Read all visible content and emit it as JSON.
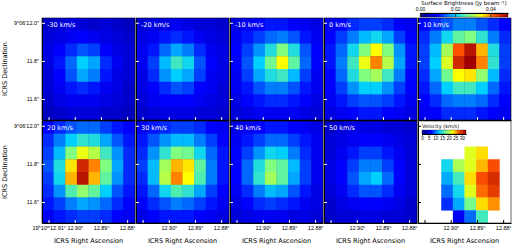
{
  "chart_data": {
    "type": "heatmap",
    "xlabel": "ICRS Right Ascension",
    "ylabel": "ICRS Declination",
    "xlim": [
      12.9125,
      12.877
    ],
    "xticks": [
      {
        "value": 12.91,
        "label": "19ʰ10ᵐ12.91ˢ"
      },
      {
        "value": 12.9,
        "label": "12.90ˢ"
      },
      {
        "value": 12.89,
        "label": "12.89ˢ"
      },
      {
        "value": 12.88,
        "label": "12.88ˢ"
      }
    ],
    "ylim": [
      11.49,
      12.025
    ],
    "yticks": [
      {
        "value": 12.0,
        "label": "9°06′12.0″"
      },
      {
        "value": 11.8,
        "label": "11.8″"
      },
      {
        "value": 11.6,
        "label": "11.6″"
      }
    ],
    "colorbar": {
      "label": "Surface Brightness (Jy beam⁻¹)",
      "range": [
        0,
        0.05
      ],
      "ticks": [
        {
          "value": 0,
          "label": "0.00"
        },
        {
          "value": 0.02,
          "label": "0.02"
        },
        {
          "value": 0.04,
          "label": "0.04"
        }
      ]
    },
    "panels": [
      {
        "label": "-30 km/s",
        "cells": [
          [
            0.006,
            0.007,
            0.008,
            0.007,
            0.006,
            0.007,
            0.006,
            0.005
          ],
          [
            0.007,
            0.008,
            0.009,
            0.01,
            0.009,
            0.008,
            0.007,
            0.006
          ],
          [
            0.008,
            0.01,
            0.012,
            0.014,
            0.013,
            0.01,
            0.008,
            0.007
          ],
          [
            0.008,
            0.011,
            0.015,
            0.02,
            0.018,
            0.012,
            0.009,
            0.007
          ],
          [
            0.007,
            0.01,
            0.014,
            0.018,
            0.016,
            0.011,
            0.008,
            0.007
          ],
          [
            0.007,
            0.009,
            0.011,
            0.012,
            0.011,
            0.009,
            0.008,
            0.006
          ],
          [
            0.006,
            0.008,
            0.009,
            0.009,
            0.009,
            0.008,
            0.007,
            0.006
          ],
          [
            0.005,
            0.006,
            0.007,
            0.007,
            0.007,
            0.006,
            0.006,
            0.005
          ]
        ]
      },
      {
        "label": "-20 km/s",
        "cells": [
          [
            0.007,
            0.008,
            0.008,
            0.009,
            0.008,
            0.007,
            0.007,
            0.006
          ],
          [
            0.008,
            0.009,
            0.011,
            0.012,
            0.011,
            0.009,
            0.008,
            0.007
          ],
          [
            0.009,
            0.011,
            0.015,
            0.018,
            0.016,
            0.012,
            0.009,
            0.008
          ],
          [
            0.009,
            0.013,
            0.019,
            0.024,
            0.021,
            0.014,
            0.01,
            0.008
          ],
          [
            0.008,
            0.012,
            0.017,
            0.02,
            0.018,
            0.013,
            0.009,
            0.008
          ],
          [
            0.008,
            0.01,
            0.012,
            0.014,
            0.013,
            0.01,
            0.009,
            0.007
          ],
          [
            0.007,
            0.009,
            0.01,
            0.01,
            0.01,
            0.009,
            0.008,
            0.007
          ],
          [
            0.006,
            0.007,
            0.008,
            0.008,
            0.008,
            0.007,
            0.007,
            0.006
          ]
        ]
      },
      {
        "label": "-10 km/s",
        "cells": [
          [
            0.008,
            0.009,
            0.01,
            0.011,
            0.011,
            0.01,
            0.009,
            0.008
          ],
          [
            0.009,
            0.011,
            0.013,
            0.015,
            0.016,
            0.014,
            0.011,
            0.009
          ],
          [
            0.01,
            0.013,
            0.017,
            0.022,
            0.028,
            0.022,
            0.014,
            0.01
          ],
          [
            0.01,
            0.014,
            0.02,
            0.027,
            0.035,
            0.026,
            0.015,
            0.01
          ],
          [
            0.009,
            0.013,
            0.018,
            0.022,
            0.024,
            0.019,
            0.013,
            0.009
          ],
          [
            0.009,
            0.011,
            0.014,
            0.016,
            0.016,
            0.014,
            0.011,
            0.009
          ],
          [
            0.008,
            0.01,
            0.011,
            0.012,
            0.012,
            0.011,
            0.01,
            0.008
          ],
          [
            0.007,
            0.008,
            0.009,
            0.009,
            0.009,
            0.009,
            0.008,
            0.007
          ]
        ]
      },
      {
        "label": "0 km/s",
        "cells": [
          [
            0.009,
            0.01,
            0.012,
            0.013,
            0.013,
            0.012,
            0.01,
            0.009
          ],
          [
            0.01,
            0.013,
            0.016,
            0.019,
            0.021,
            0.018,
            0.013,
            0.01
          ],
          [
            0.011,
            0.015,
            0.021,
            0.028,
            0.035,
            0.028,
            0.017,
            0.011
          ],
          [
            0.011,
            0.016,
            0.024,
            0.034,
            0.04,
            0.031,
            0.018,
            0.011
          ],
          [
            0.01,
            0.015,
            0.022,
            0.028,
            0.03,
            0.024,
            0.016,
            0.01
          ],
          [
            0.01,
            0.013,
            0.017,
            0.02,
            0.02,
            0.017,
            0.013,
            0.01
          ],
          [
            0.009,
            0.011,
            0.013,
            0.014,
            0.014,
            0.013,
            0.011,
            0.009
          ],
          [
            0.008,
            0.009,
            0.01,
            0.011,
            0.011,
            0.01,
            0.009,
            0.008
          ]
        ]
      },
      {
        "label": "10 km/s",
        "cells": [
          [
            0.01,
            0.012,
            0.014,
            0.016,
            0.016,
            0.014,
            0.012,
            0.01
          ],
          [
            0.012,
            0.016,
            0.021,
            0.026,
            0.028,
            0.023,
            0.016,
            0.012
          ],
          [
            0.013,
            0.019,
            0.03,
            0.042,
            0.048,
            0.038,
            0.022,
            0.013
          ],
          [
            0.013,
            0.02,
            0.033,
            0.046,
            0.05,
            0.04,
            0.023,
            0.013
          ],
          [
            0.012,
            0.018,
            0.027,
            0.035,
            0.036,
            0.029,
            0.019,
            0.012
          ],
          [
            0.011,
            0.015,
            0.02,
            0.024,
            0.024,
            0.02,
            0.015,
            0.011
          ],
          [
            0.01,
            0.012,
            0.015,
            0.016,
            0.016,
            0.015,
            0.012,
            0.01
          ],
          [
            0.009,
            0.01,
            0.012,
            0.012,
            0.012,
            0.011,
            0.01,
            0.009
          ]
        ]
      },
      {
        "label": "20 km/s",
        "cells": [
          [
            0.01,
            0.012,
            0.014,
            0.015,
            0.015,
            0.013,
            0.011,
            0.01
          ],
          [
            0.012,
            0.016,
            0.02,
            0.023,
            0.022,
            0.018,
            0.014,
            0.011
          ],
          [
            0.013,
            0.019,
            0.028,
            0.034,
            0.031,
            0.024,
            0.017,
            0.012
          ],
          [
            0.014,
            0.022,
            0.036,
            0.046,
            0.04,
            0.028,
            0.018,
            0.012
          ],
          [
            0.013,
            0.021,
            0.038,
            0.048,
            0.038,
            0.026,
            0.017,
            0.012
          ],
          [
            0.012,
            0.017,
            0.025,
            0.029,
            0.026,
            0.02,
            0.014,
            0.011
          ],
          [
            0.011,
            0.013,
            0.016,
            0.018,
            0.017,
            0.015,
            0.012,
            0.01
          ],
          [
            0.009,
            0.011,
            0.012,
            0.013,
            0.013,
            0.012,
            0.01,
            0.009
          ]
        ]
      },
      {
        "label": "30 km/s",
        "cells": [
          [
            0.009,
            0.011,
            0.012,
            0.013,
            0.013,
            0.012,
            0.01,
            0.009
          ],
          [
            0.011,
            0.014,
            0.017,
            0.019,
            0.019,
            0.016,
            0.013,
            0.01
          ],
          [
            0.012,
            0.017,
            0.023,
            0.028,
            0.027,
            0.021,
            0.015,
            0.011
          ],
          [
            0.013,
            0.019,
            0.03,
            0.038,
            0.036,
            0.026,
            0.016,
            0.011
          ],
          [
            0.012,
            0.019,
            0.031,
            0.04,
            0.035,
            0.025,
            0.016,
            0.011
          ],
          [
            0.011,
            0.015,
            0.021,
            0.025,
            0.023,
            0.018,
            0.013,
            0.01
          ],
          [
            0.01,
            0.012,
            0.014,
            0.016,
            0.015,
            0.013,
            0.011,
            0.009
          ],
          [
            0.008,
            0.01,
            0.011,
            0.011,
            0.011,
            0.01,
            0.009,
            0.008
          ]
        ]
      },
      {
        "label": "40 km/s",
        "cells": [
          [
            0.008,
            0.009,
            0.01,
            0.011,
            0.011,
            0.01,
            0.009,
            0.008
          ],
          [
            0.009,
            0.011,
            0.013,
            0.015,
            0.015,
            0.013,
            0.011,
            0.009
          ],
          [
            0.01,
            0.013,
            0.017,
            0.021,
            0.02,
            0.016,
            0.012,
            0.009
          ],
          [
            0.01,
            0.015,
            0.022,
            0.028,
            0.026,
            0.019,
            0.013,
            0.009
          ],
          [
            0.01,
            0.015,
            0.023,
            0.03,
            0.026,
            0.018,
            0.013,
            0.009
          ],
          [
            0.009,
            0.012,
            0.016,
            0.019,
            0.018,
            0.014,
            0.011,
            0.008
          ],
          [
            0.008,
            0.01,
            0.012,
            0.013,
            0.012,
            0.011,
            0.009,
            0.008
          ],
          [
            0.007,
            0.008,
            0.009,
            0.009,
            0.009,
            0.008,
            0.008,
            0.007
          ]
        ]
      },
      {
        "label": "50 km/s",
        "cells": [
          [
            0.006,
            0.007,
            0.008,
            0.008,
            0.008,
            0.007,
            0.007,
            0.006
          ],
          [
            0.007,
            0.008,
            0.009,
            0.01,
            0.01,
            0.009,
            0.008,
            0.007
          ],
          [
            0.007,
            0.009,
            0.011,
            0.013,
            0.013,
            0.011,
            0.009,
            0.007
          ],
          [
            0.008,
            0.01,
            0.013,
            0.016,
            0.016,
            0.013,
            0.01,
            0.007
          ],
          [
            0.008,
            0.01,
            0.014,
            0.018,
            0.02,
            0.015,
            0.01,
            0.007
          ],
          [
            0.007,
            0.009,
            0.012,
            0.014,
            0.014,
            0.012,
            0.009,
            0.007
          ],
          [
            0.006,
            0.008,
            0.009,
            0.01,
            0.01,
            0.009,
            0.008,
            0.006
          ],
          [
            0.006,
            0.007,
            0.007,
            0.008,
            0.008,
            0.007,
            0.007,
            0.006
          ]
        ]
      }
    ],
    "velocity_map": {
      "colorbar": {
        "label": "Velocity (km/s)",
        "range": [
          0,
          33
        ],
        "ticks": [
          0,
          5,
          10,
          15,
          20,
          25,
          30
        ]
      },
      "cells": [
        [
          null,
          null,
          null,
          null,
          null,
          null,
          null,
          null
        ],
        [
          null,
          null,
          null,
          null,
          null,
          null,
          null,
          null
        ],
        [
          null,
          null,
          null,
          null,
          22,
          24,
          null,
          null
        ],
        [
          null,
          null,
          14,
          20,
          22,
          25,
          28,
          null
        ],
        [
          null,
          null,
          12,
          16,
          24,
          28,
          30,
          null
        ],
        [
          null,
          null,
          10,
          14,
          22,
          27,
          29,
          null
        ],
        [
          null,
          null,
          8,
          12,
          18,
          24,
          26,
          null
        ],
        [
          null,
          null,
          null,
          6,
          10,
          16,
          null,
          null
        ]
      ]
    }
  }
}
